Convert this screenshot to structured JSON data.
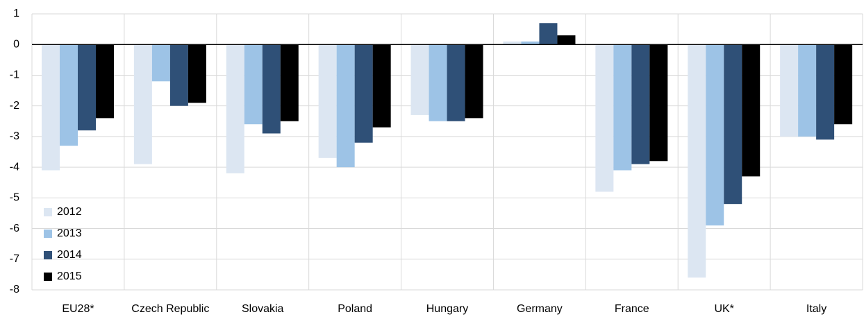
{
  "chart_data": {
    "type": "bar",
    "categories": [
      "EU28*",
      "Czech Republic",
      "Slovakia",
      "Poland",
      "Hungary",
      "Germany",
      "France",
      "UK*",
      "Italy"
    ],
    "series": [
      {
        "name": "2012",
        "color": "#dce6f2",
        "values": [
          -4.1,
          -3.9,
          -4.2,
          -3.7,
          -2.3,
          0.1,
          -4.8,
          -7.6,
          -3.0
        ]
      },
      {
        "name": "2013",
        "color": "#9dc3e6",
        "values": [
          -3.3,
          -1.2,
          -2.6,
          -4.0,
          -2.5,
          0.1,
          -4.1,
          -5.9,
          -3.0
        ]
      },
      {
        "name": "2014",
        "color": "#2f5077",
        "values": [
          -2.8,
          -2.0,
          -2.9,
          -3.2,
          -2.5,
          0.7,
          -3.9,
          -5.2,
          -3.1
        ]
      },
      {
        "name": "2015",
        "color": "#000000",
        "values": [
          -2.4,
          -1.9,
          -2.5,
          -2.7,
          -2.4,
          0.3,
          -3.8,
          -4.3,
          -2.6
        ]
      }
    ],
    "ylim": [
      -8,
      1
    ],
    "yticks": [
      -8,
      -7,
      -6,
      -5,
      -4,
      -3,
      -2,
      -1,
      0,
      1
    ],
    "grid": true,
    "legend": "bottom-left"
  }
}
